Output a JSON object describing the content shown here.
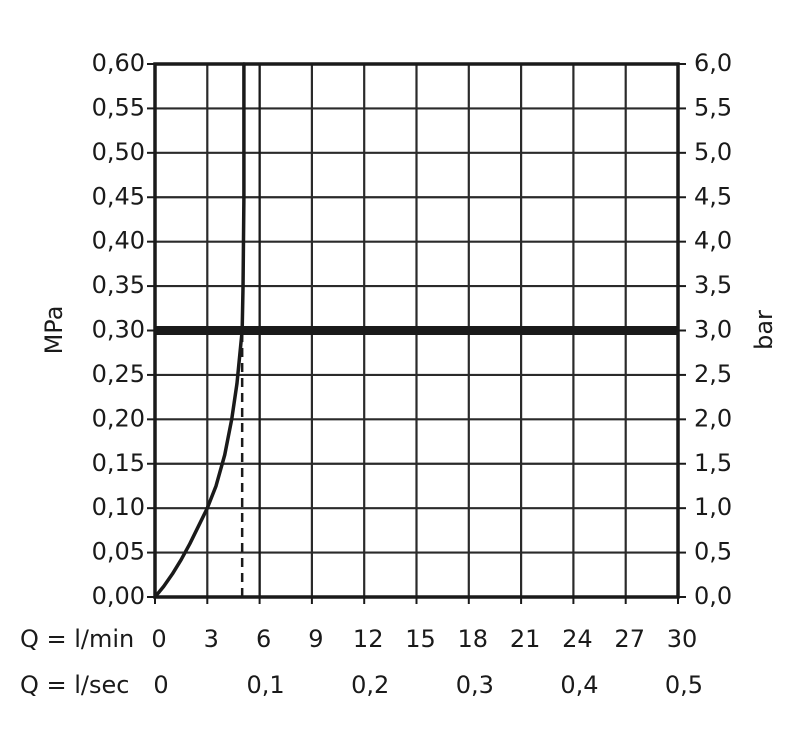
{
  "chart_data": {
    "type": "line",
    "y_left": {
      "label": "MPa",
      "ticks": [
        "0,00",
        "0,05",
        "0,10",
        "0,15",
        "0,20",
        "0,25",
        "0,30",
        "0,35",
        "0,40",
        "0,45",
        "0,50",
        "0,55",
        "0,60"
      ],
      "range": [
        0,
        0.6
      ]
    },
    "y_right": {
      "label": "bar",
      "ticks": [
        "0,0",
        "0,5",
        "1,0",
        "1,5",
        "2,0",
        "2,5",
        "3,0",
        "3,5",
        "4,0",
        "4,5",
        "5,0",
        "5,5",
        "6,0"
      ],
      "range": [
        0,
        6
      ]
    },
    "x_primary": {
      "label": "Q = l/min",
      "ticks": [
        "0",
        "3",
        "6",
        "9",
        "12",
        "15",
        "18",
        "21",
        "24",
        "27",
        "30"
      ],
      "range": [
        0,
        30
      ]
    },
    "x_secondary": {
      "label": "Q = l/sec",
      "ticks": [
        "0",
        "0,1",
        "0,2",
        "0,3",
        "0,4",
        "0,5"
      ],
      "values": [
        0,
        0.1,
        0.2,
        0.3,
        0.4,
        0.5
      ]
    },
    "grid": true,
    "series": [
      {
        "x": [
          0,
          0.5,
          1,
          1.5,
          2,
          2.5,
          3,
          3.5,
          4,
          4.4,
          4.7,
          4.9,
          5.0,
          5.05,
          5.1,
          5.1
        ],
        "y": [
          0,
          0.012,
          0.026,
          0.042,
          0.06,
          0.08,
          0.1,
          0.125,
          0.16,
          0.2,
          0.24,
          0.28,
          0.3,
          0.35,
          0.45,
          0.6
        ],
        "style": "solid"
      }
    ],
    "reference_lines": [
      {
        "orientation": "horizontal",
        "y": 0.3,
        "style": "bold"
      },
      {
        "orientation": "vertical",
        "x": 5.0,
        "y_from": 0,
        "y_to": 0.3,
        "style": "dashed"
      }
    ]
  }
}
